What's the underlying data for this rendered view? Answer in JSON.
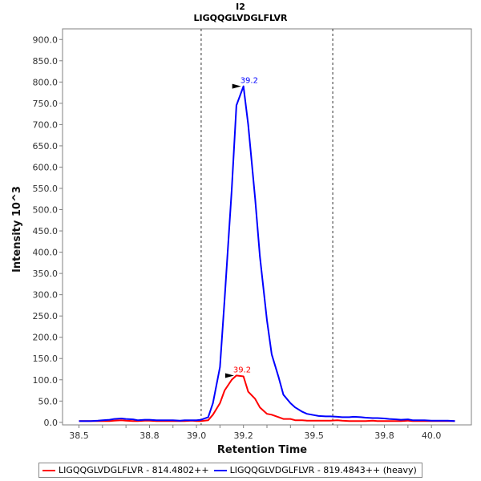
{
  "chart_data": {
    "type": "line",
    "title": "I2",
    "subtitle": "LIGQQGLVDGLFLVR",
    "xlabel": "Retention Time",
    "ylabel": "Intensity 10^3",
    "xlim": [
      38.43,
      40.17
    ],
    "ylim": [
      -6,
      925
    ],
    "x_ticks": [
      "38.5",
      "38.6",
      "38.7",
      "38.8",
      "38.9",
      "39.0",
      "39.1",
      "39.2",
      "39.3",
      "39.4",
      "39.5",
      "39.6",
      "39.7",
      "39.8",
      "39.9",
      "40.0"
    ],
    "x_tick_labels_shown": [
      "38.5",
      "38.8",
      "39.0",
      "39.2",
      "39.5",
      "39.8",
      "40.0"
    ],
    "y_ticks": [
      "0.0",
      "50.0",
      "100.0",
      "150.0",
      "200.0",
      "250.0",
      "300.0",
      "350.0",
      "400.0",
      "450.0",
      "500.0",
      "550.0",
      "600.0",
      "650.0",
      "700.0",
      "750.0",
      "800.0",
      "850.0",
      "900.0"
    ],
    "boundaries": [
      39.02,
      39.58
    ],
    "grid": false,
    "legend_position": "bottom",
    "series": [
      {
        "name": "LIGQQGLVDGLFLVR - 814.4802++",
        "color": "#ff0000",
        "x": [
          38.5,
          38.53,
          38.55,
          38.58,
          38.6,
          38.63,
          38.65,
          38.68,
          38.7,
          38.73,
          38.75,
          38.78,
          38.8,
          38.83,
          38.85,
          38.88,
          38.9,
          38.93,
          38.95,
          38.98,
          39.0,
          39.02,
          39.05,
          39.07,
          39.1,
          39.12,
          39.15,
          39.17,
          39.2,
          39.22,
          39.25,
          39.27,
          39.3,
          39.32,
          39.35,
          39.37,
          39.4,
          39.42,
          39.45,
          39.47,
          39.5,
          39.52,
          39.55,
          39.57,
          39.6,
          39.62,
          39.65,
          39.67,
          39.7,
          39.72,
          39.75,
          39.77,
          39.8,
          39.82,
          39.85,
          39.87,
          39.9,
          39.92,
          39.95,
          39.97,
          40.0,
          40.02,
          40.05,
          40.07,
          40.1
        ],
        "values": [
          3,
          3,
          3,
          3,
          3,
          3,
          4,
          5,
          4,
          3,
          3,
          4,
          4,
          3,
          3,
          3,
          3,
          3,
          3,
          4,
          3,
          3,
          5,
          18,
          45,
          75,
          100,
          110,
          108,
          72,
          55,
          35,
          20,
          18,
          12,
          8,
          8,
          5,
          5,
          4,
          4,
          4,
          4,
          4,
          5,
          4,
          3,
          3,
          3,
          3,
          4,
          3,
          3,
          3,
          3,
          3,
          4,
          3,
          3,
          3,
          3,
          3,
          3,
          3,
          3
        ],
        "peak": {
          "x": 39.2,
          "label": "39.2"
        }
      },
      {
        "name": "LIGQQGLVDGLFLVR - 819.4843++ (heavy)",
        "color": "#0000ff",
        "x": [
          38.5,
          38.53,
          38.55,
          38.58,
          38.6,
          38.63,
          38.65,
          38.68,
          38.7,
          38.73,
          38.75,
          38.78,
          38.8,
          38.83,
          38.85,
          38.88,
          38.9,
          38.93,
          38.95,
          38.98,
          39.0,
          39.02,
          39.05,
          39.07,
          39.1,
          39.12,
          39.15,
          39.17,
          39.2,
          39.22,
          39.25,
          39.27,
          39.3,
          39.32,
          39.35,
          39.37,
          39.4,
          39.42,
          39.45,
          39.47,
          39.5,
          39.52,
          39.55,
          39.57,
          39.6,
          39.62,
          39.65,
          39.67,
          39.7,
          39.72,
          39.75,
          39.77,
          39.8,
          39.82,
          39.85,
          39.87,
          39.9,
          39.92,
          39.95,
          39.97,
          40.0,
          40.02,
          40.05,
          40.07,
          40.1
        ],
        "values": [
          3,
          3,
          3,
          4,
          5,
          6,
          8,
          9,
          8,
          7,
          5,
          6,
          6,
          5,
          5,
          5,
          5,
          4,
          5,
          5,
          5,
          6,
          12,
          45,
          130,
          290,
          545,
          745,
          790,
          700,
          525,
          390,
          240,
          160,
          105,
          65,
          45,
          35,
          25,
          20,
          17,
          15,
          14,
          14,
          13,
          12,
          12,
          13,
          12,
          11,
          10,
          10,
          9,
          8,
          7,
          6,
          7,
          5,
          5,
          5,
          4,
          4,
          4,
          4,
          3
        ],
        "peak": {
          "x": 39.2,
          "label": "39.2"
        }
      }
    ]
  }
}
